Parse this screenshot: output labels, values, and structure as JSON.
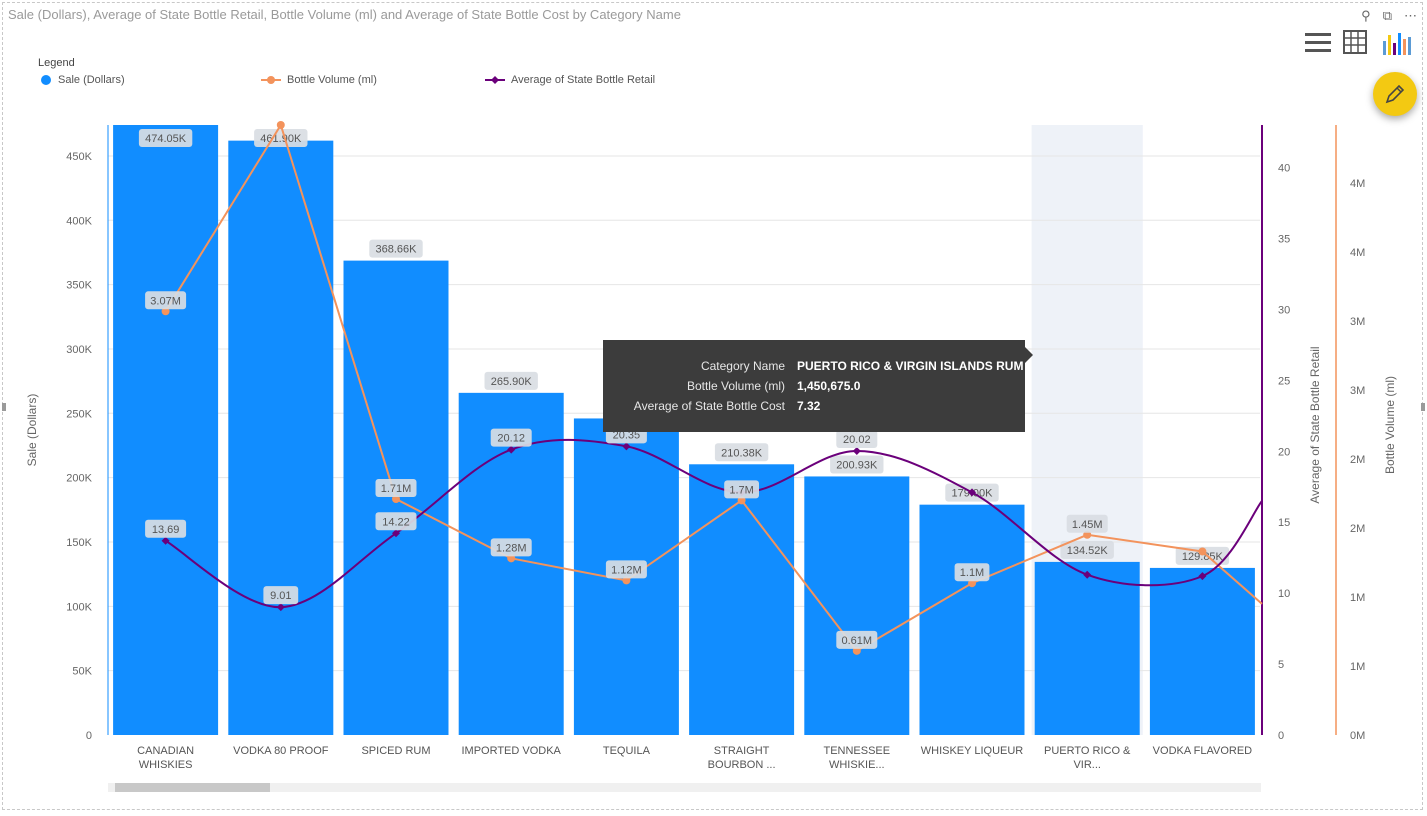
{
  "title": "Sale (Dollars), Average of State Bottle Retail, Bottle Volume (ml) and Average of State Bottle Cost by Category Name",
  "header_icons": [
    "pin-icon",
    "focus-mode-icon",
    "more-options-icon"
  ],
  "legend": {
    "title": "Legend",
    "items": [
      {
        "label": "Sale (Dollars)",
        "color": "#118DFF"
      },
      {
        "label": "Bottle Volume (ml)",
        "color": "#F3935C"
      },
      {
        "label": "Average of State Bottle Retail",
        "color": "#6B007B"
      }
    ]
  },
  "tooltip": {
    "rows": [
      {
        "key": "Category Name",
        "value": "PUERTO RICO & VIRGIN ISLANDS RUM"
      },
      {
        "key": "Bottle Volume (ml)",
        "value": "1,450,675.0"
      },
      {
        "key": "Average of State Bottle Cost",
        "value": "7.32"
      }
    ]
  },
  "chart_data": {
    "type": "bar",
    "categories": [
      "CANADIAN WHISKIES",
      "VODKA 80 PROOF",
      "SPICED RUM",
      "IMPORTED VODKA",
      "TEQUILA",
      "STRAIGHT BOURBON ...",
      "TENNESSEE WHISKIE...",
      "WHISKEY LIQUEUR",
      "PUERTO RICO & VIR...",
      "VODKA FLAVORED"
    ],
    "highlighted_category": "PUERTO RICO & VIR...",
    "xlabel": "",
    "series": [
      {
        "name": "Sale (Dollars)",
        "type": "bar",
        "axis": "left",
        "color": "#118DFF",
        "values": [
          474050,
          461900,
          368660,
          265900,
          246000,
          210380,
          200930,
          179000,
          134520,
          129850
        ],
        "labels": [
          "474.05K",
          "461.90K",
          "368.66K",
          "265.90K",
          "",
          "210.38K",
          "200.93K",
          "179.00K",
          "134.52K",
          "129.85K"
        ]
      },
      {
        "name": "Bottle Volume (ml)",
        "type": "line",
        "axis": "right2",
        "color": "#F3935C",
        "values": [
          3070000,
          4420000,
          1710000,
          1280000,
          1120000,
          1700000,
          610000,
          1100000,
          1450675,
          1330000
        ],
        "labels": [
          "3.07M",
          "",
          "1.71M",
          "1.28M",
          "1.12M",
          "1.7M",
          "0.61M",
          "1.1M",
          "1.45M",
          ""
        ]
      },
      {
        "name": "Average of State Bottle Retail",
        "type": "line",
        "smooth": true,
        "axis": "right",
        "color": "#6B007B",
        "values": [
          13.69,
          9.01,
          14.22,
          20.12,
          20.35,
          17.1,
          20.02,
          17.1,
          11.3,
          11.2
        ],
        "labels": [
          "13.69",
          "9.01",
          "14.22",
          "20.12",
          "20.35",
          "",
          "20.02",
          "",
          "",
          ""
        ]
      }
    ],
    "y_left": {
      "label": "Sale (Dollars)",
      "range": [
        0,
        474050
      ],
      "ticks": [
        0,
        50000,
        100000,
        150000,
        200000,
        250000,
        300000,
        350000,
        400000,
        450000
      ],
      "tick_labels": [
        "0",
        "50K",
        "100K",
        "150K",
        "200K",
        "250K",
        "300K",
        "350K",
        "400K",
        "450K"
      ]
    },
    "y_right": {
      "label": "Average of State Bottle Retail",
      "range": [
        0,
        43
      ],
      "ticks": [
        0,
        5,
        10,
        15,
        20,
        25,
        30,
        35,
        40
      ],
      "tick_labels": [
        "0",
        "5",
        "10",
        "15",
        "20",
        "25",
        "30",
        "35",
        "40"
      ]
    },
    "y_right2": {
      "label": "Bottle Volume (ml)",
      "range": [
        0,
        4420000
      ],
      "ticks": [
        0,
        500000,
        1000000,
        1500000,
        2000000,
        2500000,
        3000000,
        3500000,
        4000000
      ],
      "tick_labels": [
        "0M",
        "1M",
        "1M",
        "2M",
        "2M",
        "3M",
        "3M",
        "4M",
        "4M"
      ]
    },
    "grid": true,
    "legend_position": "top-left"
  }
}
